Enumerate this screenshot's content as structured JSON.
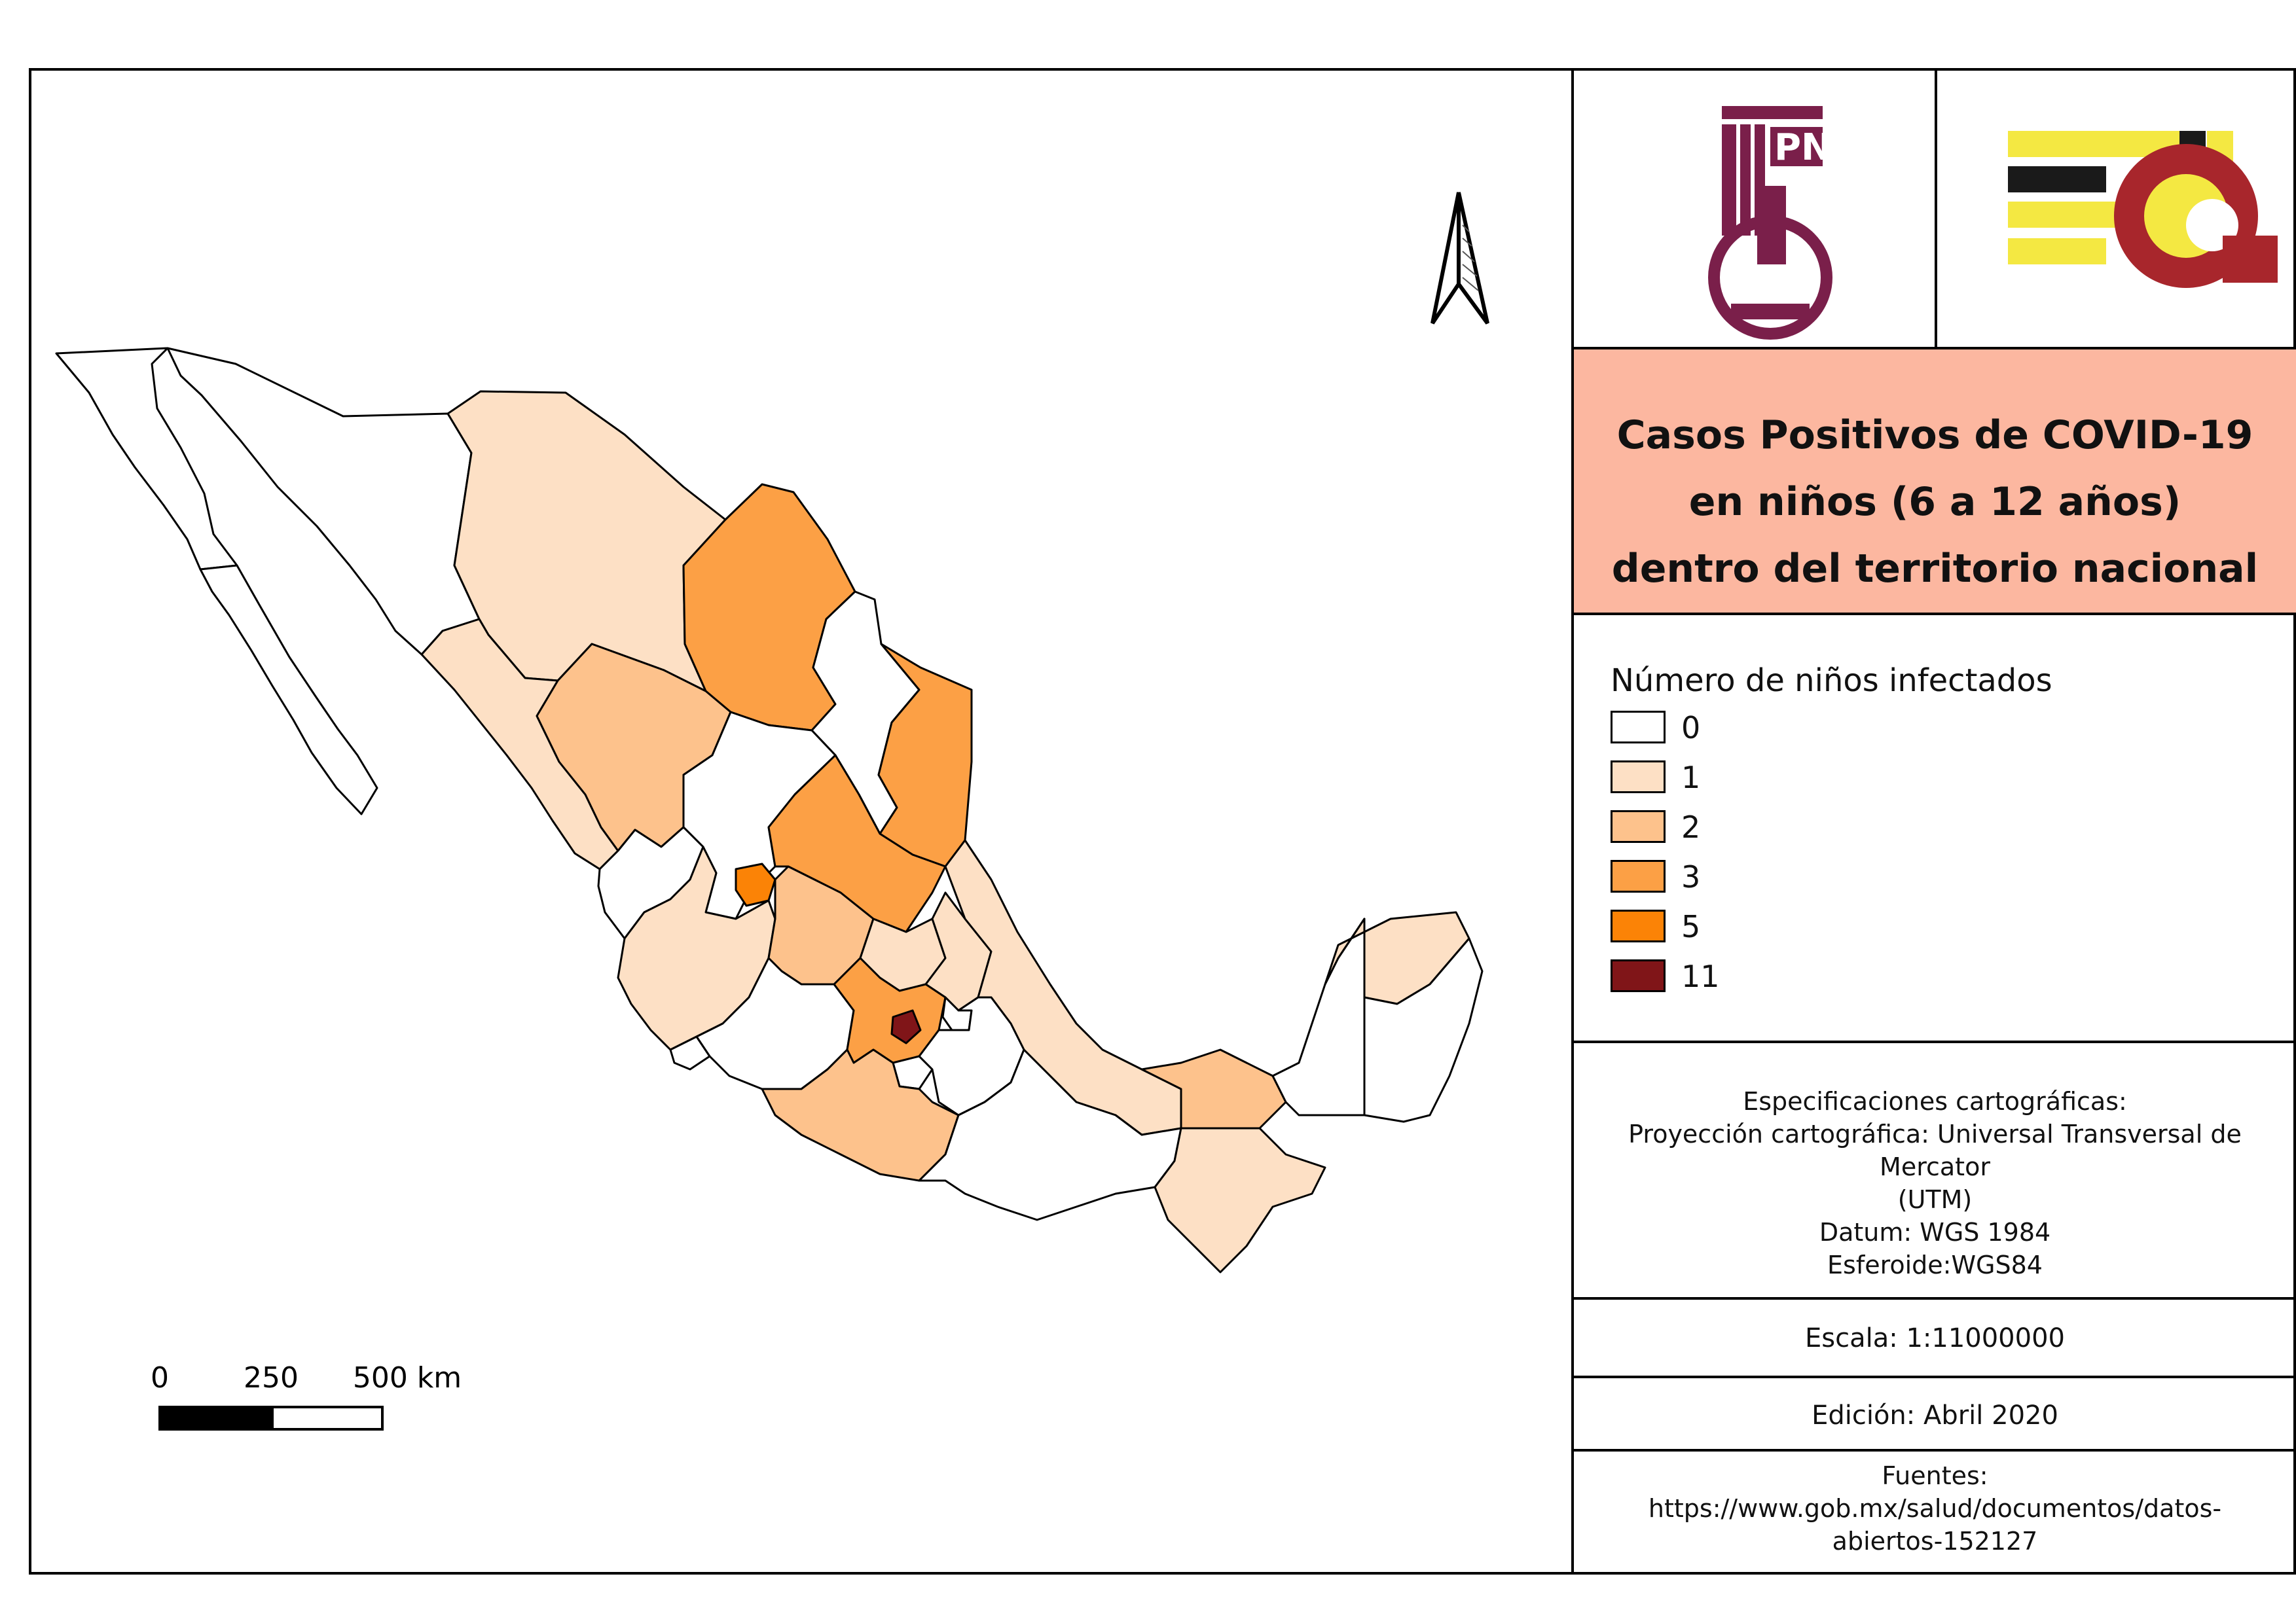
{
  "title": {
    "lines": [
      "Casos Positivos de COVID-19",
      "en niños (6 a 12 años)",
      "dentro del territorio nacional"
    ]
  },
  "legend": {
    "title": "Número de niños infectados",
    "items": [
      {
        "label": "0",
        "color": "#ffffff"
      },
      {
        "label": "1",
        "color": "#fde0c5"
      },
      {
        "label": "2",
        "color": "#fdc28c"
      },
      {
        "label": "3",
        "color": "#fca045"
      },
      {
        "label": "5",
        "color": "#fb8306"
      },
      {
        "label": "11",
        "color": "#801518"
      }
    ]
  },
  "specs": {
    "heading": "Especificaciones cartográficas:",
    "projection": "Proyección cartográfica: Universal Transversal de Mercator",
    "projection_abbr": "(UTM)",
    "datum": "Datum: WGS 1984",
    "spheroid": "Esferoide:WGS84"
  },
  "scale": "Escala: 1:11000000",
  "edition": "Edición: Abril 2020",
  "sources": {
    "heading": "Fuentes:",
    "url_part1": "https://www.gob.mx/salud/documentos/datos-",
    "url_part2": "abiertos-152127"
  },
  "scalebar": {
    "labels": [
      "0",
      "250",
      "500 km"
    ]
  },
  "north_arrow": {
    "icon": "north-arrow-icon"
  },
  "logos": [
    {
      "name": "ipn-logo",
      "lettering": "IPN",
      "colors": [
        "#7a1f4a"
      ]
    },
    {
      "name": "esia-logo",
      "colors": [
        "#f4e842",
        "#1a1a1a",
        "#a8262c"
      ]
    }
  ],
  "states": [
    {
      "name": "Baja California",
      "cases": 0
    },
    {
      "name": "Baja California Sur",
      "cases": 0
    },
    {
      "name": "Sonora",
      "cases": 0
    },
    {
      "name": "Chihuahua",
      "cases": 1
    },
    {
      "name": "Coahuila",
      "cases": 3
    },
    {
      "name": "Nuevo León",
      "cases": 0
    },
    {
      "name": "Tamaulipas",
      "cases": 3
    },
    {
      "name": "Sinaloa",
      "cases": 1
    },
    {
      "name": "Durango",
      "cases": 2
    },
    {
      "name": "Zacatecas",
      "cases": 0
    },
    {
      "name": "San Luis Potosí",
      "cases": 3
    },
    {
      "name": "Nayarit",
      "cases": 0
    },
    {
      "name": "Aguascalientes",
      "cases": 5
    },
    {
      "name": "Jalisco",
      "cases": 1
    },
    {
      "name": "Guanajuato",
      "cases": 2
    },
    {
      "name": "Querétaro",
      "cases": 1
    },
    {
      "name": "Hidalgo",
      "cases": 1
    },
    {
      "name": "Veracruz",
      "cases": 1
    },
    {
      "name": "Colima",
      "cases": 0
    },
    {
      "name": "Michoacán",
      "cases": 0
    },
    {
      "name": "Estado de México",
      "cases": 3
    },
    {
      "name": "Ciudad de México",
      "cases": 11
    },
    {
      "name": "Morelos",
      "cases": 0
    },
    {
      "name": "Tlaxcala",
      "cases": 0
    },
    {
      "name": "Puebla",
      "cases": 0
    },
    {
      "name": "Guerrero",
      "cases": 2
    },
    {
      "name": "Oaxaca",
      "cases": 0
    },
    {
      "name": "Tabasco",
      "cases": 2
    },
    {
      "name": "Chiapas",
      "cases": 1
    },
    {
      "name": "Campeche",
      "cases": 0
    },
    {
      "name": "Yucatán",
      "cases": 1
    },
    {
      "name": "Quintana Roo",
      "cases": 0
    }
  ]
}
